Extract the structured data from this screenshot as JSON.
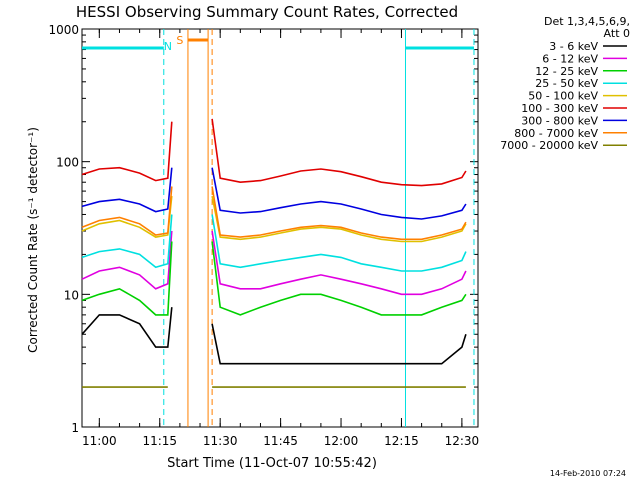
{
  "chart_data": {
    "type": "line",
    "title": "HESSI Observing Summary Count Rates, Corrected",
    "xlabel": "Start Time (11-Oct-07 10:55:42)",
    "ylabel": "Corrected Count Rate (s⁻¹ detector⁻¹)",
    "y_scale": "log",
    "ylim": [
      1,
      1000
    ],
    "xlim": [
      "10:55:42",
      "12:34:00"
    ],
    "x_ticks": [
      "11:00",
      "11:15",
      "11:30",
      "11:45",
      "12:00",
      "12:15",
      "12:30"
    ],
    "y_ticks": [
      "1",
      "10",
      "100",
      "1000"
    ],
    "legend_header": [
      "Det 1,3,4,5,6,9,",
      "Att 0"
    ],
    "legend_position": "right",
    "timestamp": "14-Feb-2010 07:24",
    "series": [
      {
        "name": "3 - 6 keV",
        "color": "#000000",
        "x": [
          "10:55:42",
          "11:00",
          "11:05",
          "11:10",
          "11:14",
          "11:17",
          "11:18",
          "11:20",
          "11:26",
          "11:28",
          "11:30",
          "11:35",
          "11:40",
          "11:45",
          "11:50",
          "11:55",
          "12:00",
          "12:05",
          "12:10",
          "12:15",
          "12:20",
          "12:25",
          "12:30",
          "12:31"
        ],
        "values": [
          5,
          7,
          7,
          6,
          4,
          4,
          8,
          null,
          null,
          6,
          3,
          3,
          3,
          3,
          3,
          3,
          3,
          3,
          3,
          3,
          3,
          3,
          4,
          5
        ]
      },
      {
        "name": "6 - 12 keV",
        "color": "#e000e0",
        "x": [
          "10:55:42",
          "11:00",
          "11:05",
          "11:10",
          "11:14",
          "11:17",
          "11:18",
          "11:20",
          "11:26",
          "11:28",
          "11:30",
          "11:35",
          "11:40",
          "11:45",
          "11:50",
          "11:55",
          "12:00",
          "12:05",
          "12:10",
          "12:15",
          "12:20",
          "12:25",
          "12:30",
          "12:31"
        ],
        "values": [
          13,
          15,
          16,
          14,
          11,
          12,
          30,
          null,
          null,
          30,
          12,
          11,
          11,
          12,
          13,
          14,
          13,
          12,
          11,
          10,
          10,
          11,
          13,
          15
        ]
      },
      {
        "name": "12 - 25 keV",
        "color": "#00d000",
        "x": [
          "10:55:42",
          "11:00",
          "11:05",
          "11:10",
          "11:14",
          "11:17",
          "11:18",
          "11:20",
          "11:26",
          "11:28",
          "11:30",
          "11:35",
          "11:40",
          "11:45",
          "11:50",
          "11:55",
          "12:00",
          "12:05",
          "12:10",
          "12:15",
          "12:20",
          "12:25",
          "12:30",
          "12:31"
        ],
        "values": [
          9,
          10,
          11,
          9,
          7,
          7,
          25,
          null,
          null,
          25,
          8,
          7,
          8,
          9,
          10,
          10,
          9,
          8,
          7,
          7,
          7,
          8,
          9,
          10
        ]
      },
      {
        "name": "25 - 50 keV",
        "color": "#00e0e0",
        "x": [
          "10:55:42",
          "11:00",
          "11:05",
          "11:10",
          "11:14",
          "11:17",
          "11:18",
          "11:20",
          "11:26",
          "11:28",
          "11:30",
          "11:35",
          "11:40",
          "11:45",
          "11:50",
          "11:55",
          "12:00",
          "12:05",
          "12:10",
          "12:15",
          "12:20",
          "12:25",
          "12:30",
          "12:31"
        ],
        "values": [
          19,
          21,
          22,
          20,
          16,
          17,
          40,
          null,
          null,
          40,
          17,
          16,
          17,
          18,
          19,
          20,
          19,
          17,
          16,
          15,
          15,
          16,
          18,
          21
        ]
      },
      {
        "name": "50 - 100 keV",
        "color": "#e0c000",
        "x": [
          "10:55:42",
          "11:00",
          "11:05",
          "11:10",
          "11:14",
          "11:17",
          "11:18",
          "11:20",
          "11:26",
          "11:28",
          "11:30",
          "11:35",
          "11:40",
          "11:45",
          "11:50",
          "11:55",
          "12:00",
          "12:05",
          "12:10",
          "12:15",
          "12:20",
          "12:25",
          "12:30",
          "12:31"
        ],
        "values": [
          30,
          34,
          36,
          32,
          27,
          28,
          55,
          null,
          null,
          55,
          27,
          26,
          27,
          29,
          31,
          32,
          31,
          28,
          26,
          25,
          25,
          27,
          30,
          34
        ]
      },
      {
        "name": "100 - 300 keV",
        "color": "#e00000",
        "x": [
          "10:55:42",
          "11:00",
          "11:05",
          "11:10",
          "11:14",
          "11:17",
          "11:18",
          "11:20",
          "11:26",
          "11:28",
          "11:30",
          "11:35",
          "11:40",
          "11:45",
          "11:50",
          "11:55",
          "12:00",
          "12:05",
          "12:10",
          "12:15",
          "12:20",
          "12:25",
          "12:30",
          "12:31"
        ],
        "values": [
          80,
          88,
          90,
          82,
          72,
          75,
          200,
          null,
          null,
          210,
          75,
          70,
          72,
          78,
          85,
          88,
          84,
          77,
          70,
          67,
          66,
          68,
          76,
          85
        ]
      },
      {
        "name": "300 - 800 keV",
        "color": "#0000e0",
        "x": [
          "10:55:42",
          "11:00",
          "11:05",
          "11:10",
          "11:14",
          "11:17",
          "11:18",
          "11:20",
          "11:26",
          "11:28",
          "11:30",
          "11:35",
          "11:40",
          "11:45",
          "11:50",
          "11:55",
          "12:00",
          "12:05",
          "12:10",
          "12:15",
          "12:20",
          "12:25",
          "12:30",
          "12:31"
        ],
        "values": [
          46,
          50,
          52,
          48,
          42,
          44,
          90,
          null,
          null,
          90,
          43,
          41,
          42,
          45,
          48,
          50,
          48,
          44,
          40,
          38,
          37,
          39,
          43,
          48
        ]
      },
      {
        "name": "800 - 7000 keV",
        "color": "#ff8000",
        "x": [
          "10:55:42",
          "11:00",
          "11:05",
          "11:10",
          "11:14",
          "11:17",
          "11:18",
          "11:20",
          "11:26",
          "11:28",
          "11:30",
          "11:35",
          "11:40",
          "11:45",
          "11:50",
          "11:55",
          "12:00",
          "12:05",
          "12:10",
          "12:15",
          "12:20",
          "12:25",
          "12:30",
          "12:31"
        ],
        "values": [
          32,
          36,
          38,
          34,
          28,
          29,
          65,
          null,
          null,
          65,
          28,
          27,
          28,
          30,
          32,
          33,
          32,
          29,
          27,
          26,
          26,
          28,
          31,
          35
        ]
      },
      {
        "name": "7000 - 20000 keV",
        "color": "#808000",
        "x": [
          "10:55:42",
          "11:00",
          "11:05",
          "11:10",
          "11:14",
          "11:17",
          "11:18",
          "11:20",
          "11:26",
          "11:28",
          "11:30",
          "11:35",
          "11:40",
          "11:45",
          "11:50",
          "11:55",
          "12:00",
          "12:05",
          "12:10",
          "12:15",
          "12:20",
          "12:25",
          "12:30",
          "12:31"
        ],
        "values": [
          2,
          2,
          2,
          2,
          2,
          2,
          null,
          null,
          null,
          2,
          2,
          2,
          2,
          2,
          2,
          2,
          2,
          2,
          2,
          2,
          2,
          2,
          2,
          2
        ]
      }
    ],
    "annotations": [
      {
        "label": "N",
        "color": "#00e0e0"
      },
      {
        "label": "S",
        "color": "#ff8000"
      }
    ]
  }
}
